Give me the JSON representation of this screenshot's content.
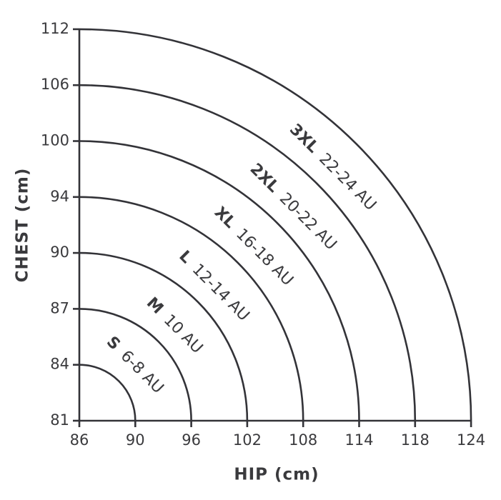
{
  "y_axis": {
    "label": "CHEST (cm)",
    "ticks": [
      81,
      84,
      87,
      90,
      94,
      100,
      106,
      112
    ]
  },
  "x_axis": {
    "label": "HIP (cm)",
    "ticks": [
      86,
      90,
      96,
      102,
      108,
      114,
      118,
      124
    ]
  },
  "sizes": [
    {
      "name": "S",
      "range": "6-8 AU"
    },
    {
      "name": "M",
      "range": "10 AU"
    },
    {
      "name": "L",
      "range": "12-14 AU"
    },
    {
      "name": "XL",
      "range": "16-18 AU"
    },
    {
      "name": "2XL",
      "range": "20-22 AU"
    },
    {
      "name": "3XL",
      "range": "22-24 AU"
    }
  ]
}
